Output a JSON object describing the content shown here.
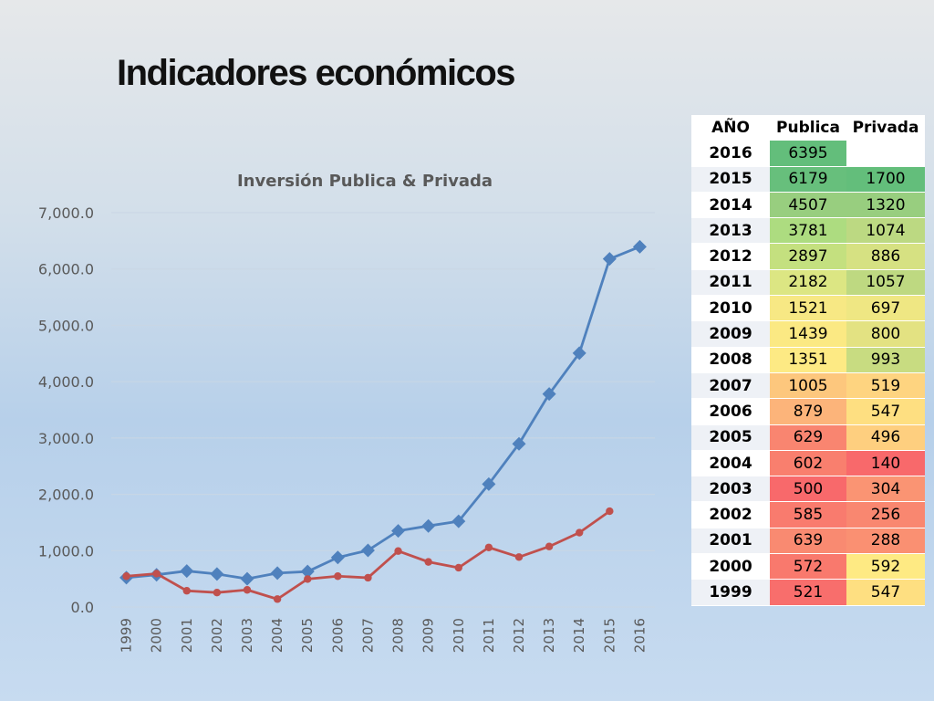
{
  "slide": {
    "title": "Indicadores económicos"
  },
  "chart_data": {
    "type": "line",
    "title": "Inversión Publica & Privada",
    "xlabel": "",
    "ylabel": "",
    "ylim": [
      0,
      7000
    ],
    "y_ticks": [
      "0.0",
      "1,000.0",
      "2,000.0",
      "3,000.0",
      "4,000.0",
      "5,000.0",
      "6,000.0",
      "7,000.0"
    ],
    "categories": [
      "1999",
      "2000",
      "2001",
      "2002",
      "2003",
      "2004",
      "2005",
      "2006",
      "2007",
      "2008",
      "2009",
      "2010",
      "2011",
      "2012",
      "2013",
      "2014",
      "2015",
      "2016"
    ],
    "grid": true,
    "series": [
      {
        "color": "#4f81bd",
        "marker": "diamond",
        "values": [
          521,
          572,
          639,
          585,
          500,
          602,
          629,
          879,
          1005,
          1351,
          1439,
          1521,
          2182,
          2897,
          3781,
          4507,
          6179,
          6395
        ]
      },
      {
        "color": "#c0504d",
        "marker": "circle",
        "values": [
          547,
          592,
          288,
          256,
          304,
          140,
          496,
          547,
          519,
          993,
          800,
          697,
          1057,
          886,
          1074,
          1320,
          1700,
          null
        ]
      }
    ]
  },
  "table": {
    "headers": [
      "AÑO",
      "Publica",
      "Privada"
    ],
    "rows": [
      {
        "year": "2016",
        "publica": "6395",
        "privada": "",
        "pub_color": "#63be7b",
        "pri_color": "#ffffff"
      },
      {
        "year": "2015",
        "publica": "6179",
        "privada": "1700",
        "pub_color": "#67bf7c",
        "pri_color": "#63be7b"
      },
      {
        "year": "2014",
        "publica": "4507",
        "privada": "1320",
        "pub_color": "#98ce7f",
        "pri_color": "#98ce7f"
      },
      {
        "year": "2013",
        "publica": "3781",
        "privada": "1074",
        "pub_color": "#addc80",
        "pri_color": "#bcd982"
      },
      {
        "year": "2012",
        "publica": "2897",
        "privada": "886",
        "pub_color": "#c4e07f",
        "pri_color": "#d6e182"
      },
      {
        "year": "2011",
        "publica": "2182",
        "privada": "1057",
        "pub_color": "#dce683",
        "pri_color": "#bed981"
      },
      {
        "year": "2010",
        "publica": "1521",
        "privada": "697",
        "pub_color": "#f7e884",
        "pri_color": "#efe783"
      },
      {
        "year": "2009",
        "publica": "1439",
        "privada": "800",
        "pub_color": "#fbe983",
        "pri_color": "#e3e282"
      },
      {
        "year": "2008",
        "publica": "1351",
        "privada": "993",
        "pub_color": "#fdea84",
        "pri_color": "#c8dc81"
      },
      {
        "year": "2007",
        "publica": "1005",
        "privada": "519",
        "pub_color": "#fdc77d",
        "pri_color": "#fed480"
      },
      {
        "year": "2006",
        "publica": "879",
        "privada": "547",
        "pub_color": "#fcb47a",
        "pri_color": "#fedf81"
      },
      {
        "year": "2005",
        "publica": "629",
        "privada": "496",
        "pub_color": "#f98570",
        "pri_color": "#fecf7f"
      },
      {
        "year": "2004",
        "publica": "602",
        "privada": "140",
        "pub_color": "#f97f6e",
        "pri_color": "#f8696b"
      },
      {
        "year": "2003",
        "publica": "500",
        "privada": "304",
        "pub_color": "#f8696b",
        "pri_color": "#fa9473"
      },
      {
        "year": "2002",
        "publica": "585",
        "privada": "256",
        "pub_color": "#f97b6e",
        "pri_color": "#f98770"
      },
      {
        "year": "2001",
        "publica": "639",
        "privada": "288",
        "pub_color": "#f98a71",
        "pri_color": "#fa9072"
      },
      {
        "year": "2000",
        "publica": "572",
        "privada": "592",
        "pub_color": "#f9796d",
        "pri_color": "#feea83"
      },
      {
        "year": "1999",
        "publica": "521",
        "privada": "547",
        "pub_color": "#f86e6c",
        "pri_color": "#fedf81"
      }
    ]
  }
}
